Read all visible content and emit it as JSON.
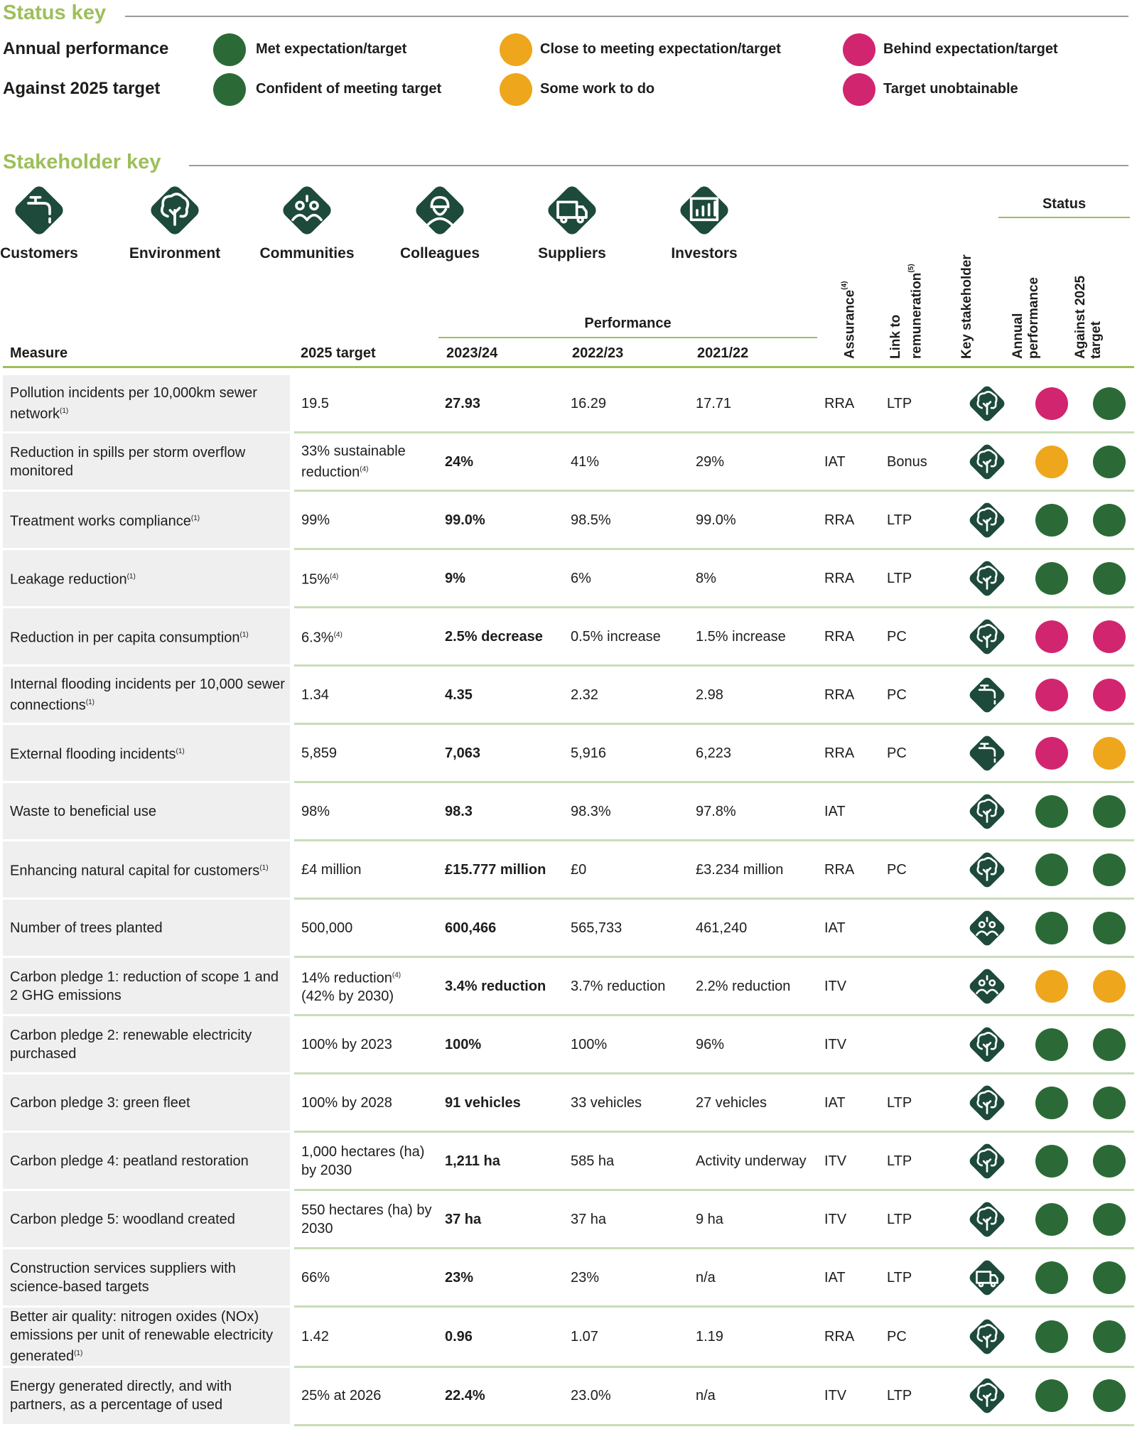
{
  "status_key": {
    "title": "Status key",
    "colors": [
      "#2b6a36",
      "#eea61c",
      "#d2256f"
    ],
    "rows": [
      {
        "label": "Annual performance",
        "items": [
          "Met expectation/target",
          "Close to meeting expectation/target",
          "Behind expectation/target"
        ]
      },
      {
        "label": "Against 2025 target",
        "items": [
          "Confident of meeting target",
          "Some work to do",
          "Target unobtainable"
        ]
      }
    ]
  },
  "stakeholder_key": {
    "title": "Stakeholder key",
    "items": [
      "Customers",
      "Environment",
      "Communities",
      "Colleagues",
      "Suppliers",
      "Investors"
    ]
  },
  "table": {
    "headers": {
      "measure": "Measure",
      "target": "2025 target",
      "performance": "Performance",
      "years": [
        "2023/24",
        "2022/23",
        "2021/22"
      ],
      "assurance": "Assurance",
      "assurance_note": "(4)",
      "link": "Link to remuneration",
      "link_note": "(5)",
      "stakeholder": "Key stakeholder",
      "status": "Status",
      "annual": "Annual performance",
      "against": "Against 2025 target"
    },
    "rows": [
      {
        "measure": "Pollution incidents per 10,000km sewer network",
        "measure_note": "(1)",
        "target": "19.5",
        "values": [
          "27.93",
          "16.29",
          "17.71"
        ],
        "assurance": "RRA",
        "link": "LTP",
        "stakeholder": 1,
        "annual": 2,
        "against": 0
      },
      {
        "measure": "Reduction in spills per storm overflow monitored",
        "target": "33% sustainable reduction",
        "target_note": "(4)",
        "values": [
          "24%",
          "41%",
          "29%"
        ],
        "assurance": "IAT",
        "link": "Bonus",
        "stakeholder": 1,
        "annual": 1,
        "against": 0
      },
      {
        "measure": "Treatment works compliance",
        "measure_note": "(1)",
        "target": "99%",
        "values": [
          "99.0%",
          "98.5%",
          "99.0%"
        ],
        "assurance": "RRA",
        "link": "LTP",
        "stakeholder": 1,
        "annual": 0,
        "against": 0
      },
      {
        "measure": "Leakage reduction",
        "measure_note": "(1)",
        "target": "15%",
        "target_note": "(4)",
        "values": [
          "9%",
          "6%",
          "8%"
        ],
        "assurance": "RRA",
        "link": "LTP",
        "stakeholder": 1,
        "annual": 0,
        "against": 0
      },
      {
        "measure": "Reduction in per capita consumption",
        "measure_note": "(1)",
        "target": "6.3%",
        "target_note": "(4)",
        "values": [
          "2.5% decrease",
          "0.5% increase",
          "1.5% increase"
        ],
        "assurance": "RRA",
        "link": "PC",
        "stakeholder": 1,
        "annual": 2,
        "against": 2
      },
      {
        "measure": "Internal flooding incidents per 10,000 sewer connections",
        "measure_note": "(1)",
        "target": "1.34",
        "values": [
          "4.35",
          "2.32",
          "2.98"
        ],
        "assurance": "RRA",
        "link": "PC",
        "stakeholder": 0,
        "annual": 2,
        "against": 2
      },
      {
        "measure": "External flooding incidents",
        "measure_note": "(1)",
        "target": "5,859",
        "values": [
          "7,063",
          "5,916",
          "6,223"
        ],
        "assurance": "RRA",
        "link": "PC",
        "stakeholder": 0,
        "annual": 2,
        "against": 1
      },
      {
        "measure": "Waste to beneficial use",
        "target": "98%",
        "values": [
          "98.3",
          "98.3%",
          "97.8%"
        ],
        "assurance": "IAT",
        "link": null,
        "stakeholder": 1,
        "annual": 0,
        "against": 0
      },
      {
        "measure": "Enhancing natural capital for customers",
        "measure_note": "(1)",
        "target": "£4 million",
        "values": [
          "£15.777 million",
          "£0",
          "£3.234 million"
        ],
        "assurance": "RRA",
        "link": "PC",
        "stakeholder": 1,
        "annual": 0,
        "against": 0
      },
      {
        "measure": "Number of trees planted",
        "target": "500,000",
        "values": [
          "600,466",
          "565,733",
          "461,240"
        ],
        "assurance": "IAT",
        "link": null,
        "stakeholder": 2,
        "annual": 0,
        "against": 0
      },
      {
        "measure": "Carbon pledge 1: reduction of scope 1 and 2 GHG emissions",
        "target": "14% reduction",
        "target_note": "(4)",
        "target_extra": "(42% by 2030)",
        "values": [
          "3.4% reduction",
          "3.7% reduction",
          "2.2% reduction"
        ],
        "assurance": "ITV",
        "link": null,
        "stakeholder": 2,
        "annual": 1,
        "against": 1
      },
      {
        "measure": "Carbon pledge 2: renewable electricity purchased",
        "target": "100% by 2023",
        "values": [
          "100%",
          "100%",
          "96%"
        ],
        "assurance": "ITV",
        "link": null,
        "stakeholder": 1,
        "annual": 0,
        "against": 0
      },
      {
        "measure": "Carbon pledge 3: green fleet",
        "target": "100% by 2028",
        "values": [
          "91 vehicles",
          "33 vehicles",
          "27 vehicles"
        ],
        "assurance": "IAT",
        "link": "LTP",
        "stakeholder": 1,
        "annual": 0,
        "against": 0
      },
      {
        "measure": "Carbon pledge 4: peatland restoration",
        "target": "1,000 hectares (ha) by 2030",
        "values": [
          "1,211 ha",
          "585 ha",
          "Activity underway"
        ],
        "assurance": "ITV",
        "link": "LTP",
        "stakeholder": 1,
        "annual": 0,
        "against": 0
      },
      {
        "measure": "Carbon pledge 5: woodland created",
        "target": "550 hectares (ha) by 2030",
        "values": [
          "37 ha",
          "37 ha",
          "9 ha"
        ],
        "assurance": "ITV",
        "link": "LTP",
        "stakeholder": 1,
        "annual": 0,
        "against": 0
      },
      {
        "measure": "Construction services suppliers with science-based targets",
        "target": "66%",
        "values": [
          "23%",
          "23%",
          "n/a"
        ],
        "assurance": "IAT",
        "link": "LTP",
        "stakeholder": 4,
        "annual": 0,
        "against": 0
      },
      {
        "measure": "Better air quality: nitrogen oxides (NOx) emissions per unit of renewable electricity generated",
        "measure_note": "(1)",
        "target": "1.42",
        "values": [
          "0.96",
          "1.07",
          "1.19"
        ],
        "assurance": "RRA",
        "link": "PC",
        "stakeholder": 1,
        "annual": 0,
        "against": 0
      },
      {
        "measure": "Energy generated directly, and with partners, as a percentage of used",
        "target": "25% at 2026",
        "values": [
          "22.4%",
          "23.0%",
          "n/a"
        ],
        "assurance": "ITV",
        "link": "LTP",
        "stakeholder": 1,
        "annual": 0,
        "against": 0
      }
    ]
  }
}
